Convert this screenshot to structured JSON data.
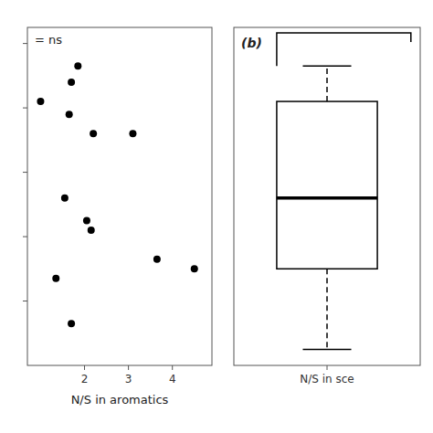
{
  "chart_data": [
    {
      "type": "scatter",
      "x": [
        1.0,
        1.7,
        1.85,
        1.65,
        2.2,
        3.1,
        1.55,
        2.05,
        2.15,
        3.65,
        1.35,
        4.5,
        1.7
      ],
      "values": [
        0.82,
        0.88,
        0.93,
        0.78,
        0.72,
        0.72,
        0.52,
        0.45,
        0.42,
        0.33,
        0.27,
        0.3,
        0.13
      ],
      "x_label": "N/S in aromatics",
      "xlim": [
        0.7,
        4.9
      ],
      "ylim": [
        0.0,
        1.05
      ],
      "xticks": [
        2,
        3,
        4
      ],
      "yticks": [
        0.2,
        0.4,
        0.6,
        0.8,
        1.0
      ],
      "tick_labels": "x",
      "color": "#000000",
      "annotation": "= ns"
    },
    {
      "type": "box",
      "categories": [
        "N/S in sce"
      ],
      "q1": [
        0.3
      ],
      "median": [
        0.52
      ],
      "q3": [
        0.82
      ],
      "whisker_low": [
        0.05
      ],
      "whisker_high": [
        0.93
      ],
      "ylim": [
        0.0,
        1.05
      ],
      "tick_labels": "x",
      "color": "#000000",
      "annotation": "(b)"
    }
  ]
}
